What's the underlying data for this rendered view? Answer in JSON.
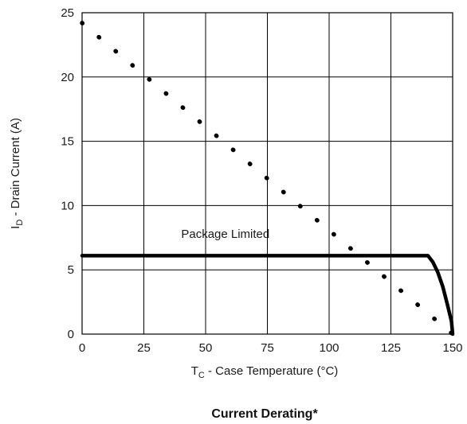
{
  "chart_data": {
    "type": "line",
    "title": "Current Derating*",
    "xlabel": {
      "main": "T",
      "sub": "C",
      "rest": " - Case Temperature (°C)"
    },
    "ylabel": {
      "main": "I",
      "sub": "D",
      "rest": " - Drain Current (A)"
    },
    "xlim": [
      0,
      150
    ],
    "ylim": [
      0,
      25
    ],
    "xticks": [
      0,
      25,
      50,
      75,
      100,
      125,
      150
    ],
    "yticks": [
      0,
      5,
      10,
      15,
      20,
      25
    ],
    "xtick_labels": [
      "0",
      "25",
      "50",
      "75",
      "100",
      "125",
      "150"
    ],
    "ytick_labels": [
      "0",
      "5",
      "10",
      "15",
      "20",
      "25"
    ],
    "grid": true,
    "annotations": [
      {
        "text": "Package Limited",
        "x": 58,
        "y": 7.5
      }
    ],
    "series": [
      {
        "style": "dotted",
        "x": [
          0,
          150
        ],
        "y": [
          24.2,
          0
        ]
      },
      {
        "style": "solid",
        "x": [
          0,
          140,
          142,
          144,
          146,
          148,
          149.5,
          150
        ],
        "y": [
          6.1,
          6.1,
          5.6,
          4.8,
          3.7,
          2.2,
          1.0,
          0
        ]
      }
    ],
    "colors": {
      "line": "#000000",
      "grid": "#000000",
      "text": "#1a1a1a"
    }
  }
}
